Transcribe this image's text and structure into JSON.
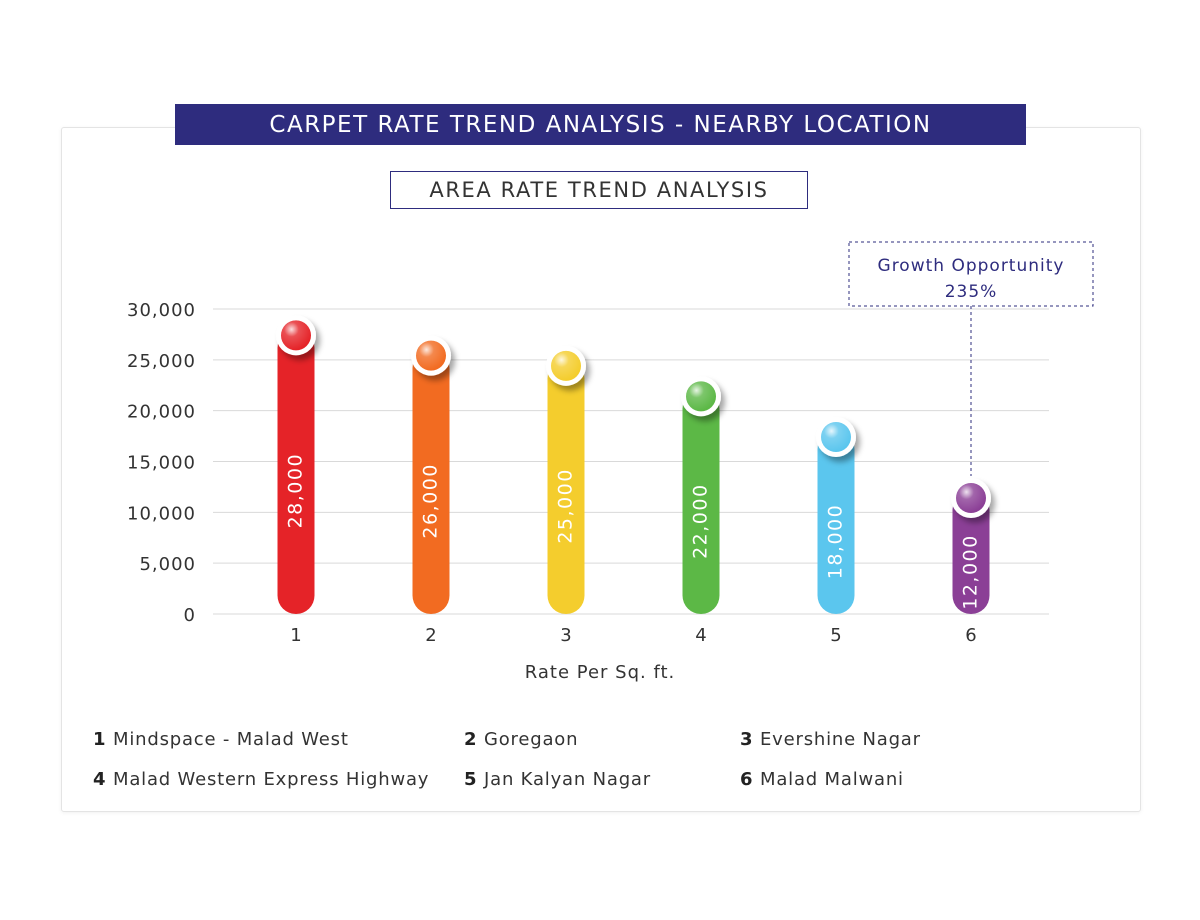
{
  "header": {
    "title": "CARPET RATE TREND ANALYSIS - NEARBY LOCATION",
    "subtitle": "AREA RATE TREND ANALYSIS"
  },
  "annotation": {
    "label": "Growth Opportunity",
    "value": "235%",
    "target_category": "6"
  },
  "legend": {
    "items": [
      {
        "num": "1",
        "label": "Mindspace - Malad West"
      },
      {
        "num": "2",
        "label": "Goregaon"
      },
      {
        "num": "3",
        "label": "Evershine Nagar"
      },
      {
        "num": "4",
        "label": "Malad Western Express Highway"
      },
      {
        "num": "5",
        "label": "Jan Kalyan Nagar"
      },
      {
        "num": "6",
        "label": "Malad Malwani"
      }
    ]
  },
  "colors": {
    "title_bg": "#2e2c7e",
    "annotation_text": "#2e2c7e",
    "bars": [
      "#e52328",
      "#f26b21",
      "#f4cd2d",
      "#5cb846",
      "#5bc6ee",
      "#8b3f96"
    ]
  },
  "chart_data": {
    "type": "bar",
    "title": "AREA RATE TREND ANALYSIS",
    "xlabel": "Rate Per Sq. ft.",
    "ylabel": "",
    "categories": [
      "1",
      "2",
      "3",
      "4",
      "5",
      "6"
    ],
    "values": [
      28000,
      26000,
      25000,
      22000,
      18000,
      12000
    ],
    "value_labels": [
      "28,000",
      "26,000",
      "25,000",
      "22,000",
      "18,000",
      "12,000"
    ],
    "ylim": [
      0,
      30000
    ],
    "yticks": [
      0,
      5000,
      10000,
      15000,
      20000,
      25000,
      30000
    ],
    "ytick_labels": [
      "0",
      "5,000",
      "10,000",
      "15,000",
      "20,000",
      "25,000",
      "30,000"
    ],
    "grid": true,
    "legend_position": "bottom"
  }
}
